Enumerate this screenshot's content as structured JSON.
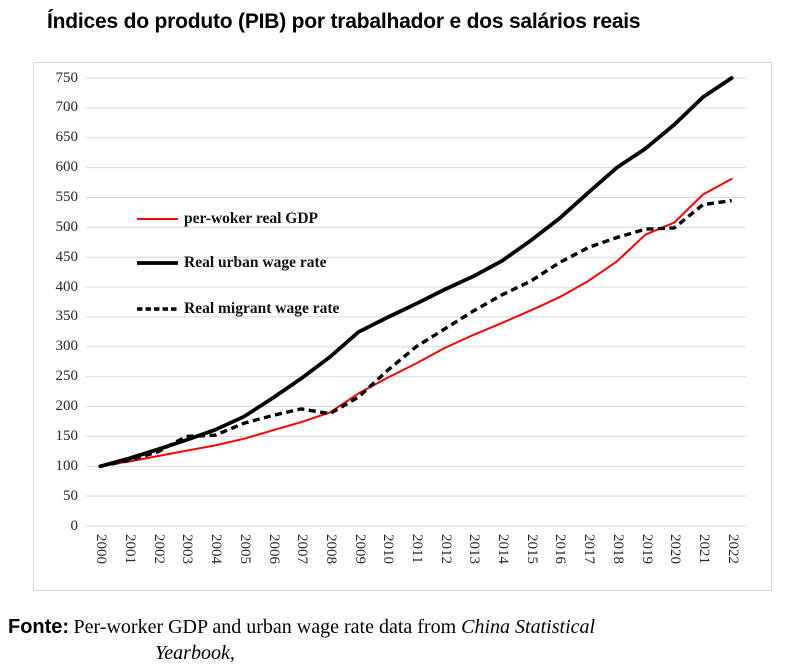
{
  "title": "Índices do produto (PIB)  por trabalhador e dos salários reais",
  "source_note": {
    "label": "Fonte:",
    "text": "Per-worker GDP and urban wage rate data from ",
    "italic_part1": "China Statistical",
    "italic_part2": "Yearbook,"
  },
  "chart_data": {
    "type": "line",
    "title": "Índices do produto (PIB)  por trabalhador e dos salários reais",
    "x": [
      2000,
      2001,
      2002,
      2003,
      2004,
      2005,
      2006,
      2007,
      2008,
      2009,
      2010,
      2011,
      2012,
      2013,
      2014,
      2015,
      2016,
      2017,
      2018,
      2019,
      2020,
      2021,
      2022
    ],
    "series": [
      {
        "name": "per-woker real GDP",
        "color": "#ff0000",
        "style": "solid",
        "stroke_width": 2,
        "values": [
          100,
          108,
          117,
          126,
          135,
          146,
          160,
          174,
          190,
          222,
          248,
          272,
          298,
          320,
          340,
          361,
          383,
          410,
          443,
          488,
          508,
          555,
          581
        ]
      },
      {
        "name": "Real urban wage rate",
        "color": "#000000",
        "style": "solid",
        "stroke_width": 3.8,
        "values": [
          100,
          113,
          128,
          144,
          161,
          183,
          214,
          247,
          283,
          325,
          349,
          372,
          396,
          418,
          444,
          478,
          515,
          558,
          600,
          632,
          672,
          718,
          750
        ]
      },
      {
        "name": "Real migrant wage rate",
        "color": "#000000",
        "style": "dashed",
        "stroke_width": 3.4,
        "values": [
          100,
          110,
          124,
          150,
          152,
          172,
          185,
          196,
          188,
          216,
          260,
          300,
          330,
          360,
          387,
          410,
          441,
          466,
          483,
          497,
          499,
          538,
          545
        ]
      }
    ],
    "ylim": [
      0,
      750
    ],
    "ytick_step": 50,
    "base_index": 100,
    "grid": "horizontal",
    "gridline_color": "#d9d9d9",
    "frame_border_color": "#d6d6d6",
    "legend_position": "inside-left",
    "xlabel": "",
    "ylabel": ""
  }
}
